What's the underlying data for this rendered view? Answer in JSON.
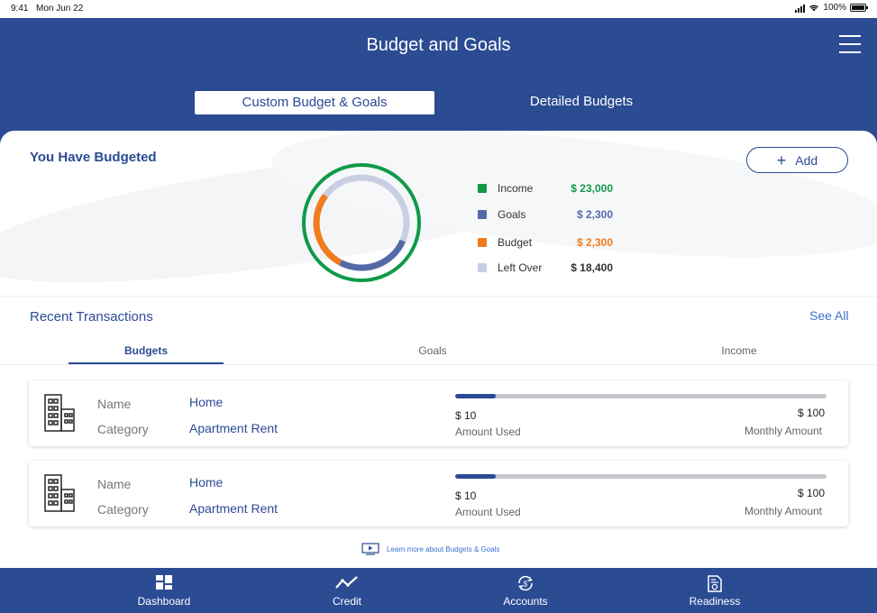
{
  "status": {
    "time": "9:41",
    "date": "Mon Jun 22",
    "battery": "100%"
  },
  "header": {
    "title": "Budget and Goals",
    "tabs": [
      {
        "label": "Custom Budget & Goals",
        "active": true
      },
      {
        "label": "Detailed Budgets",
        "active": false
      }
    ]
  },
  "budgeted": {
    "title": "You Have Budgeted",
    "add_label": "Add",
    "legend": [
      {
        "label": "Income",
        "value": "$ 23,000",
        "color": "#0f9a48"
      },
      {
        "label": "Goals",
        "value": "$ 2,300",
        "color": "#5568a7"
      },
      {
        "label": "Budget",
        "value": "$ 2,300",
        "color": "#f07c1e"
      },
      {
        "label": "Left Over",
        "value": "$ 18,400",
        "color": "#c9cfe2",
        "value_color": "#333333"
      }
    ]
  },
  "recent": {
    "title": "Recent Transactions",
    "see_all": "See All",
    "tabs": [
      "Budgets",
      "Goals",
      "Income"
    ],
    "name_label": "Name",
    "category_label": "Category",
    "used_label": "Amount Used",
    "monthly_label": "Monthly Amount",
    "items": [
      {
        "name": "Home",
        "category": "Apartment Rent",
        "used": "$ 10",
        "monthly": "$ 100",
        "progress": 0.11
      },
      {
        "name": "Home",
        "category": "Apartment Rent",
        "used": "$ 10",
        "monthly": "$ 100",
        "progress": 0.11
      }
    ]
  },
  "learn_more": "Learn more about Budgets & Goals",
  "nav": [
    {
      "label": "Dashboard",
      "icon": "dashboard-icon"
    },
    {
      "label": "Credit",
      "icon": "credit-icon"
    },
    {
      "label": "Accounts",
      "icon": "accounts-icon"
    },
    {
      "label": "Readiness",
      "icon": "readiness-icon"
    }
  ]
}
